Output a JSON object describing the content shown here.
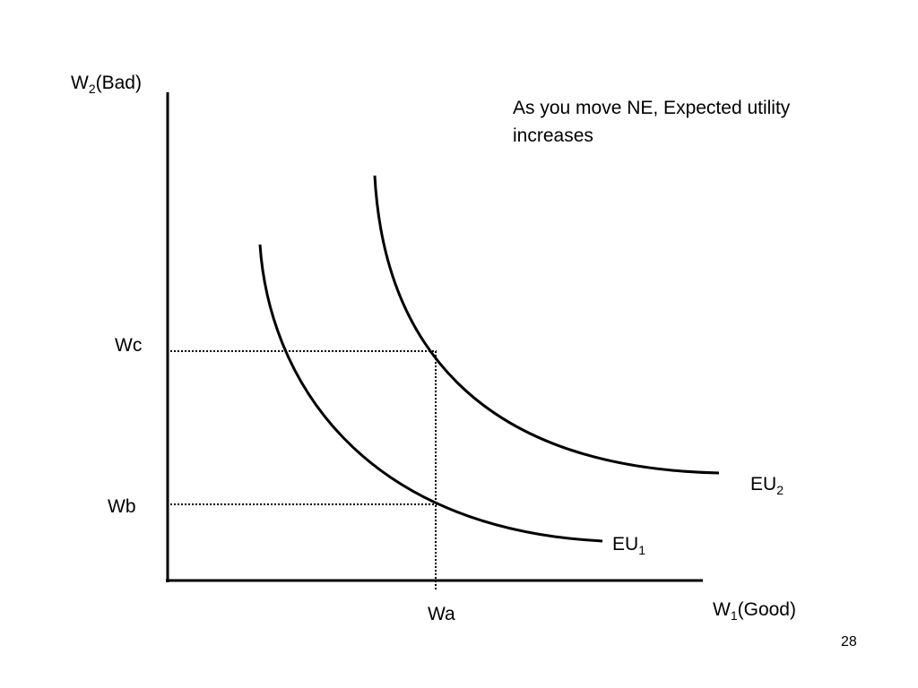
{
  "axes": {
    "y_label_main": "W",
    "y_label_sub": "2",
    "y_label_rest": "(Bad)",
    "x_label_main": "W",
    "x_label_sub": "1",
    "x_label_rest": "(Good)"
  },
  "ticks": {
    "wc": "Wc",
    "wb": "Wb",
    "wa": "Wa"
  },
  "curves": {
    "eu1_main": "EU",
    "eu1_sub": "1",
    "eu2_main": "EU",
    "eu2_sub": "2"
  },
  "annotation": {
    "text": "As you move NE, Expected utility increases"
  },
  "slide": {
    "page_number": "28"
  },
  "colors": {
    "ink": "#000000",
    "background": "#ffffff"
  }
}
